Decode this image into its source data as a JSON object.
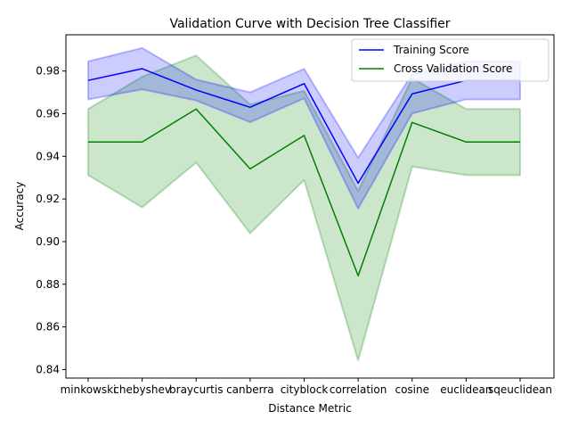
{
  "chart_data": {
    "type": "line",
    "title": "Validation Curve with Decision Tree Classifier",
    "xlabel": "Distance Metric",
    "ylabel": "Accuracy",
    "categories": [
      "minkowski",
      "chebyshev",
      "braycurtis",
      "canberra",
      "cityblock",
      "correlation",
      "cosine",
      "euclidean",
      "sqeuclidean"
    ],
    "ylim": [
      0.836,
      0.997
    ],
    "yticks": [
      0.84,
      0.86,
      0.88,
      0.9,
      0.92,
      0.94,
      0.96,
      0.98
    ],
    "ytick_labels": [
      "0.84",
      "0.86",
      "0.88",
      "0.90",
      "0.92",
      "0.94",
      "0.96",
      "0.98"
    ],
    "grid": false,
    "legend_position": "upper right",
    "series": [
      {
        "name": "Training Score",
        "color": "#0000ff",
        "band_color": "#0000ff",
        "values": [
          0.9756,
          0.9811,
          0.9711,
          0.963,
          0.9741,
          0.9274,
          0.9693,
          0.9756,
          0.9756
        ],
        "upper": [
          0.9845,
          0.9908,
          0.976,
          0.97,
          0.981,
          0.9393,
          0.9785,
          0.9845,
          0.9845
        ],
        "lower": [
          0.9667,
          0.9714,
          0.9662,
          0.956,
          0.9672,
          0.9155,
          0.9601,
          0.9667,
          0.9667
        ]
      },
      {
        "name": "Cross Validation Score",
        "color": "#008000",
        "band_color": "#008000",
        "values": [
          0.9467,
          0.9467,
          0.9622,
          0.9341,
          0.9498,
          0.884,
          0.9559,
          0.9467,
          0.9467
        ],
        "upper": [
          0.9622,
          0.9773,
          0.9873,
          0.9643,
          0.9707,
          0.9237,
          0.9766,
          0.9622,
          0.9622
        ],
        "lower": [
          0.9312,
          0.9161,
          0.9371,
          0.9039,
          0.9289,
          0.8443,
          0.9352,
          0.9312,
          0.9312
        ]
      }
    ]
  }
}
